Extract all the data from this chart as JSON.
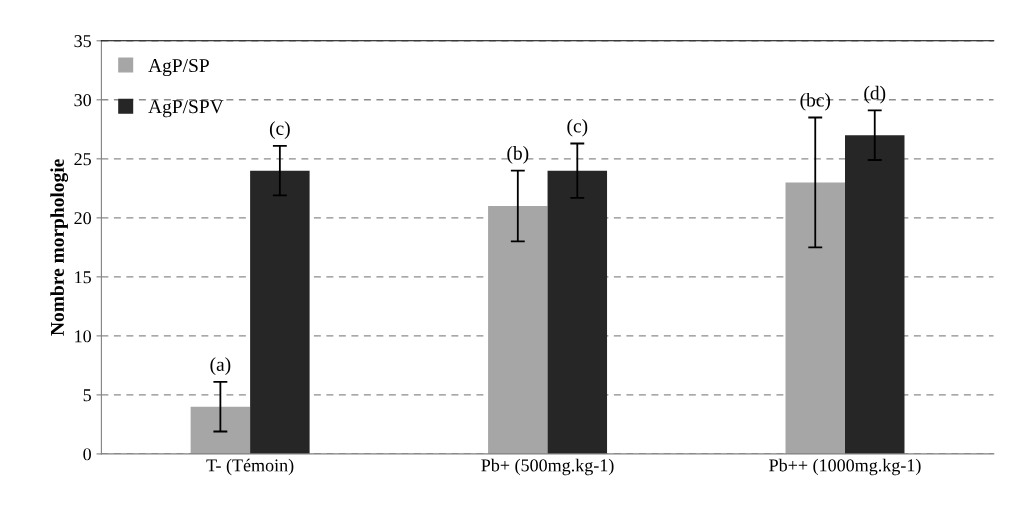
{
  "chart_data": {
    "type": "bar",
    "ylabel": "Nombre morphologie",
    "categories": [
      "T- (Témoin)",
      "Pb+ (500mg.kg-1)",
      "Pb++ (1000mg.kg-1)"
    ],
    "series": [
      {
        "name": "AgP/SP",
        "color": "#a6a6a6",
        "values": [
          4,
          21,
          23
        ],
        "errors": [
          2.1,
          3,
          5.5
        ]
      },
      {
        "name": "AgP/SPV",
        "color": "#262626",
        "values": [
          24,
          24,
          27
        ],
        "errors": [
          2.1,
          2.3,
          2.1
        ]
      }
    ],
    "annotations": [
      "(a)",
      "(c)",
      "(b)",
      "(c)",
      "(bc)",
      "(d)"
    ],
    "ylim": [
      0,
      35
    ],
    "yticks": [
      0,
      5,
      10,
      15,
      20,
      25,
      30,
      35
    ],
    "grid": "y",
    "legend": "top left"
  }
}
